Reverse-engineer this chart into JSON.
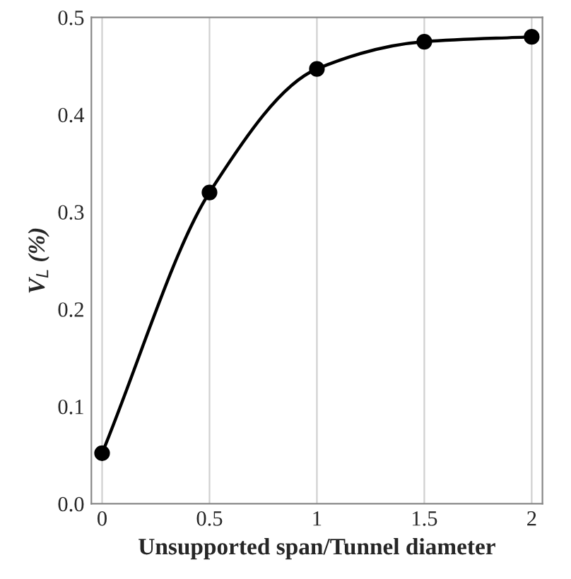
{
  "chart_data": {
    "type": "line",
    "xlabel": "Unsupported span/Tunnel diameter",
    "ylabel": "V$_{L}$ (%)",
    "x": [
      0,
      0.5,
      1,
      1.5,
      2
    ],
    "series": [
      {
        "color": "#000000",
        "values": [
          0.052,
          0.32,
          0.447,
          0.475,
          0.48
        ]
      }
    ],
    "xlim": [
      -0.05,
      2.05
    ],
    "ylim": [
      0,
      0.5
    ],
    "xticks": [
      0,
      0.5,
      1,
      1.5,
      2
    ],
    "yticks": [
      {
        "value": 0,
        "label": "0.0"
      },
      0.1,
      0.2,
      0.3,
      0.4,
      0.5
    ],
    "grid": "x",
    "marker": "circle",
    "line_style": "solid"
  }
}
